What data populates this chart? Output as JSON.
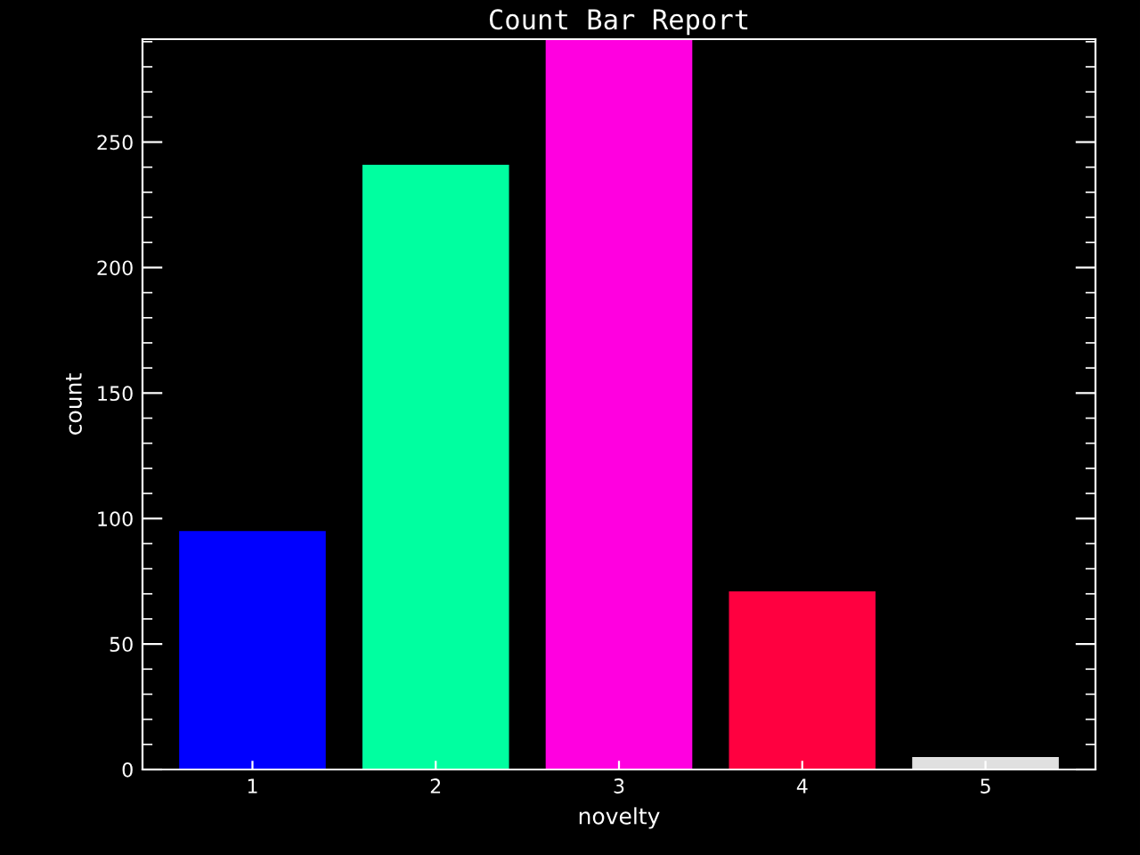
{
  "chart_data": {
    "type": "bar",
    "title": "Count Bar Report",
    "xlabel": "novelty",
    "ylabel": "count",
    "categories": [
      "1",
      "2",
      "3",
      "4",
      "5"
    ],
    "values": [
      95,
      241,
      291,
      71,
      5
    ],
    "colors": [
      "#0000ff",
      "#00ffa0",
      "#ff00e0",
      "#ff0040",
      "#e0e0e0"
    ],
    "ylim": [
      0,
      291
    ],
    "yticks": [
      0,
      50,
      100,
      150,
      200,
      250
    ],
    "grid": false,
    "legend": false
  }
}
